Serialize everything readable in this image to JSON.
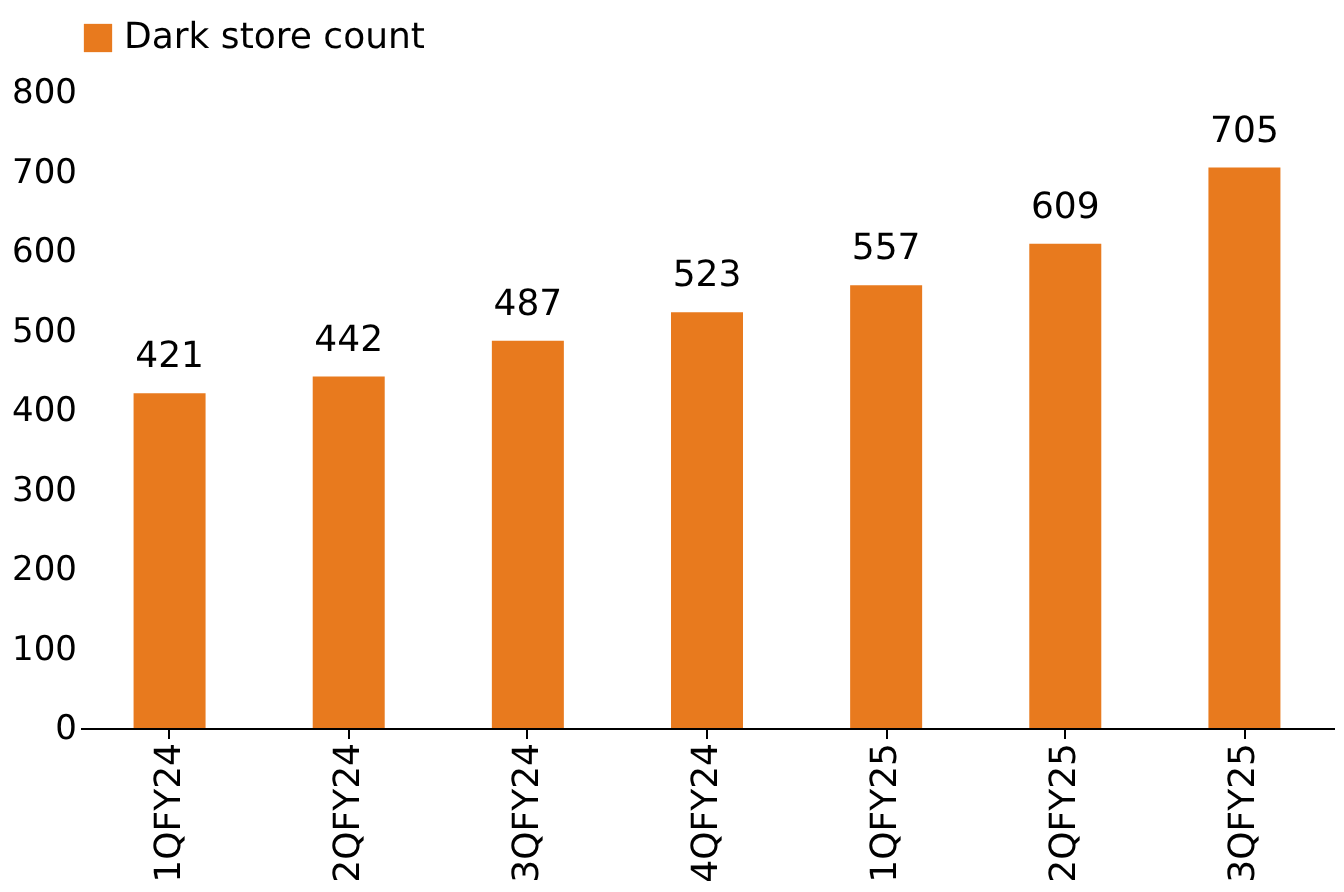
{
  "chart_data": {
    "type": "bar",
    "categories": [
      "1QFY24",
      "2QFY24",
      "3QFY24",
      "4QFY24",
      "1QFY25",
      "2QFY25",
      "3QFY25"
    ],
    "series": [
      {
        "name": "Dark store count",
        "color": "#e87a1e",
        "values": [
          421,
          442,
          487,
          523,
          557,
          609,
          705
        ]
      }
    ],
    "ylim": [
      0,
      800
    ],
    "yticks": [
      0,
      100,
      200,
      300,
      400,
      500,
      600,
      700,
      800
    ],
    "data_labels": true,
    "grid": false,
    "legend": "top"
  }
}
